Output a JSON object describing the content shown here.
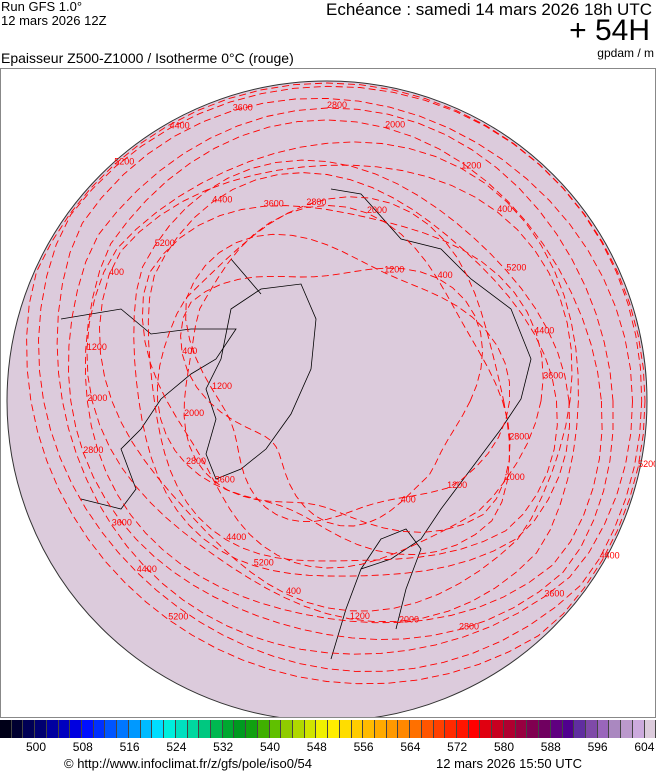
{
  "header": {
    "run": "Run GFS 1.0°",
    "run_date": "12 mars 2026 12Z",
    "echeance": "Echéance : samedi 14 mars 2026 18h UTC",
    "step": "+ 54H",
    "title": "Epaisseur Z500-Z1000 / Isotherme 0°C (rouge)",
    "unit": "gpdam / m"
  },
  "map": {
    "projection": "polar-stereographic",
    "fill_color": "#dccbdc",
    "contour_color": "#ff0000",
    "coast_color": "#000000",
    "contour_labels": [
      "400",
      "1200",
      "2000",
      "2800",
      "3600",
      "4400",
      "5200"
    ]
  },
  "colorbar": {
    "ticks": [
      "500",
      "508",
      "516",
      "524",
      "532",
      "540",
      "548",
      "556",
      "564",
      "572",
      "580",
      "588",
      "596",
      "604"
    ],
    "colors": [
      "#000018",
      "#000030",
      "#000055",
      "#000070",
      "#0000a0",
      "#0000c0",
      "#0000e0",
      "#0010ff",
      "#0030ff",
      "#0055ff",
      "#0077ff",
      "#0099ff",
      "#00bbff",
      "#00ddff",
      "#00eedd",
      "#00e0c0",
      "#00d8a0",
      "#00c880",
      "#00b850",
      "#00a830",
      "#009a20",
      "#10a010",
      "#40b000",
      "#60c000",
      "#90cc00",
      "#b0d800",
      "#d0e400",
      "#f0f000",
      "#ffee00",
      "#ffdd00",
      "#ffcc00",
      "#ffbb00",
      "#ffaa00",
      "#ff9900",
      "#ff8800",
      "#ff7000",
      "#ff5500",
      "#ff4000",
      "#ff2a00",
      "#ff1500",
      "#ff0000",
      "#e00010",
      "#c80020",
      "#b00030",
      "#980040",
      "#800050",
      "#700060",
      "#600080",
      "#50008f",
      "#602ea0",
      "#7f4aa8",
      "#9966bb",
      "#aa88c0",
      "#bb99cc",
      "#ccaadd",
      "#dccbdc"
    ]
  },
  "footer": {
    "source": "© http://www.infoclimat.fr/z/gfs/pole/iso0/54",
    "generated": "12 mars 2026 15:50 UTC"
  }
}
